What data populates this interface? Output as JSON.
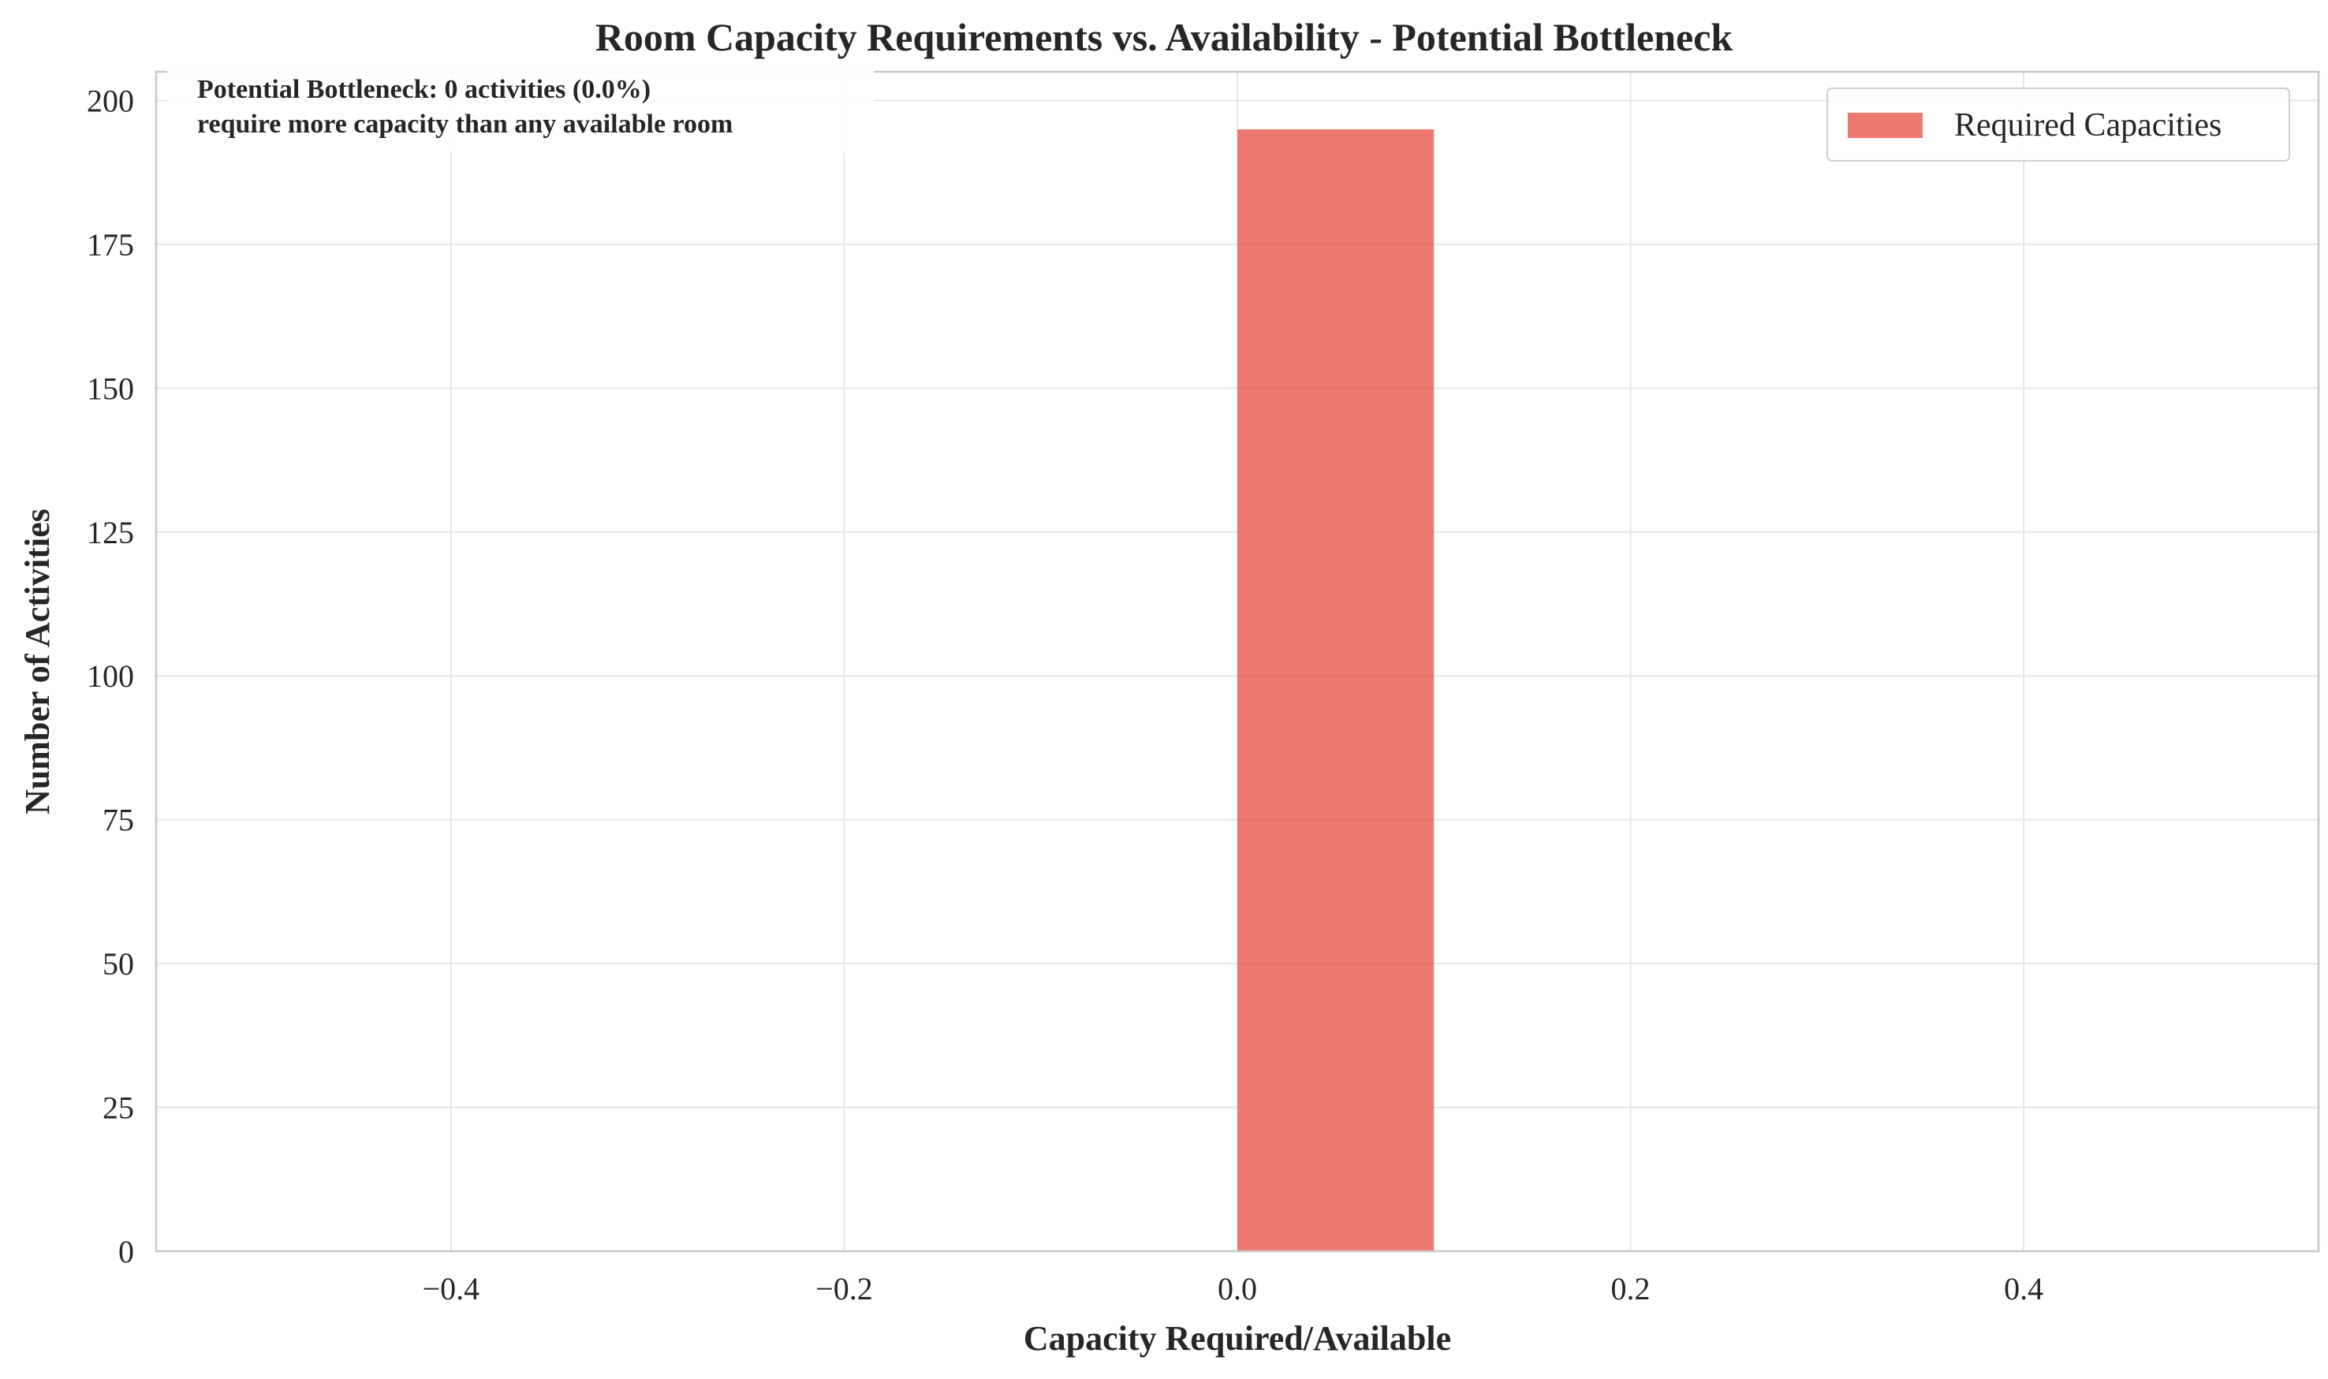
{
  "chart_data": {
    "type": "bar",
    "title": "Room Capacity Requirements vs. Availability - Potential Bottleneck",
    "xlabel": "Capacity Required/Available",
    "ylabel": "Number of Activities",
    "xlim": [
      -0.55,
      0.55
    ],
    "ylim": [
      0,
      205
    ],
    "x_ticks": [
      -0.4,
      -0.2,
      0.0,
      0.2,
      0.4
    ],
    "x_tick_labels": [
      "−0.4",
      "−0.2",
      "0.0",
      "0.2",
      "0.4"
    ],
    "y_ticks": [
      0,
      25,
      50,
      75,
      100,
      125,
      150,
      175,
      200
    ],
    "y_tick_labels": [
      "0",
      "25",
      "50",
      "75",
      "100",
      "125",
      "150",
      "175",
      "200"
    ],
    "grid": true,
    "legend_position": "top-right",
    "series": [
      {
        "name": "Required Capacities",
        "color": "#e8594c",
        "bins": [
          {
            "x0": 0.0,
            "x1": 0.1,
            "value": 195
          }
        ]
      }
    ],
    "annotation": {
      "line1": "Potential Bottleneck: 0 activities (0.0%)",
      "line2": "require more capacity than any available room"
    }
  }
}
